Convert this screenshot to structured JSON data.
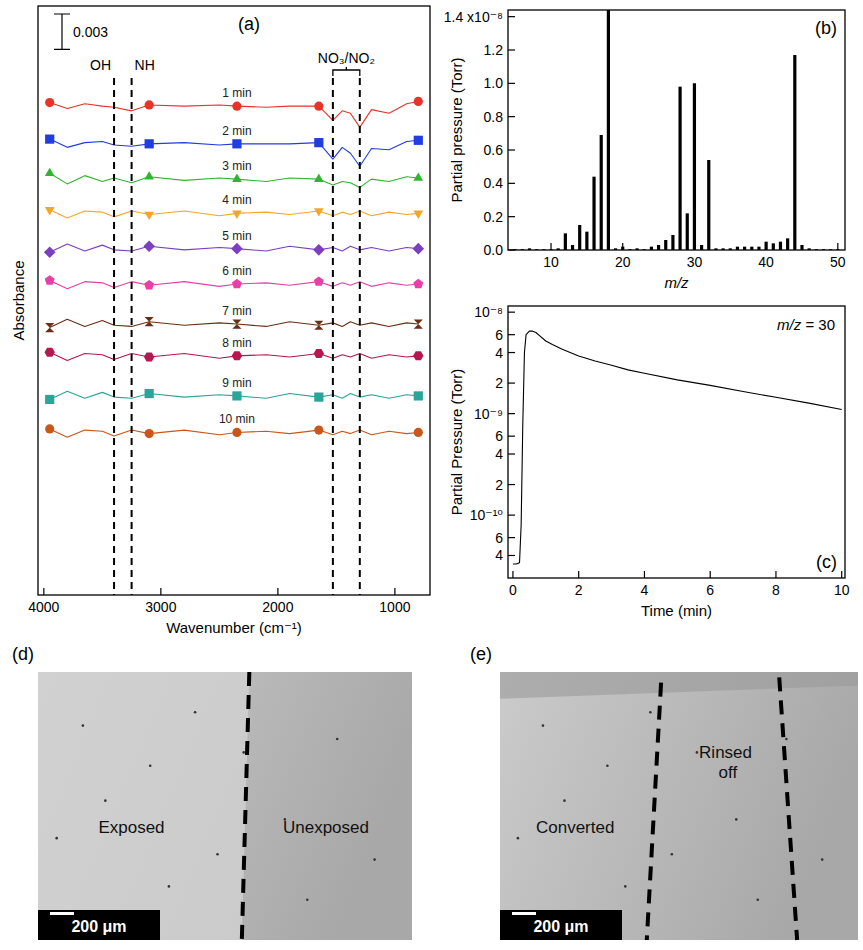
{
  "chart_data": [
    {
      "type": "line",
      "panel": "(a)",
      "x_label": "Wavenumber (cm⁻¹)",
      "y_label": "Absorbance",
      "xlim": [
        4050,
        700
      ],
      "xticks": [
        4000,
        3000,
        2000,
        1000
      ],
      "ylim": [
        0,
        0.05
      ],
      "tick_labels": "x",
      "scale_bar": 0.003,
      "annotations": [
        {
          "text": "OH",
          "x": 3400
        },
        {
          "text": "NH",
          "x": 3250
        },
        {
          "text": "NO₃/NO₂",
          "x": [
            1530,
            1300
          ]
        }
      ],
      "x": [
        3950,
        3800,
        3650,
        3500,
        3400,
        3250,
        3100,
        2800,
        2500,
        2350,
        2100,
        1900,
        1650,
        1530,
        1450,
        1380,
        1300,
        1200,
        1050,
        900,
        800
      ],
      "series": [
        {
          "name": "1 min",
          "color": "#e8332a",
          "marker": "circle",
          "values": [
            0.0418,
            0.0413,
            0.0417,
            0.0415,
            0.0414,
            0.0411,
            0.0416,
            0.0415,
            0.0416,
            0.0415,
            0.0414,
            0.0415,
            0.0415,
            0.0403,
            0.0411,
            0.0409,
            0.0397,
            0.0412,
            0.0409,
            0.0417,
            0.0419
          ]
        },
        {
          "name": "2 min",
          "color": "#1f3de0",
          "marker": "square",
          "values": [
            0.0387,
            0.038,
            0.0384,
            0.0385,
            0.0382,
            0.0381,
            0.0383,
            0.0384,
            0.0382,
            0.0383,
            0.0383,
            0.0383,
            0.0384,
            0.037,
            0.038,
            0.0375,
            0.0364,
            0.0379,
            0.0378,
            0.0385,
            0.0386
          ]
        },
        {
          "name": "3 min",
          "color": "#2fb52f",
          "marker": "triangle",
          "values": [
            0.0358,
            0.0349,
            0.0356,
            0.0351,
            0.0354,
            0.035,
            0.0355,
            0.0352,
            0.0354,
            0.0353,
            0.0351,
            0.0354,
            0.0353,
            0.0348,
            0.0351,
            0.035,
            0.0346,
            0.0353,
            0.0351,
            0.0355,
            0.0354
          ]
        },
        {
          "name": "4 min",
          "color": "#f4a62a",
          "marker": "triangle-down",
          "values": [
            0.0327,
            0.032,
            0.0326,
            0.0325,
            0.0321,
            0.0326,
            0.0323,
            0.0326,
            0.0322,
            0.0324,
            0.0325,
            0.0323,
            0.0326,
            0.0322,
            0.0325,
            0.0323,
            0.0326,
            0.0322,
            0.0325,
            0.0323,
            0.0324
          ]
        },
        {
          "name": "5 min",
          "color": "#7b3fc0",
          "marker": "diamond",
          "values": [
            0.0291,
            0.0298,
            0.0292,
            0.0297,
            0.0293,
            0.0292,
            0.0296,
            0.0293,
            0.0295,
            0.0294,
            0.0292,
            0.0296,
            0.0293,
            0.0295,
            0.0292,
            0.0296,
            0.0293,
            0.0295,
            0.0292,
            0.0295,
            0.0294
          ]
        },
        {
          "name": "6 min",
          "color": "#e83fa8",
          "marker": "pentagon",
          "values": [
            0.0267,
            0.026,
            0.0266,
            0.0265,
            0.0261,
            0.0266,
            0.0263,
            0.0266,
            0.0262,
            0.0264,
            0.0265,
            0.0263,
            0.0266,
            0.0262,
            0.0265,
            0.0263,
            0.0266,
            0.0262,
            0.0265,
            0.0263,
            0.0264
          ]
        },
        {
          "name": "7 min",
          "color": "#6b2e14",
          "marker": "hourglass",
          "values": [
            0.0227,
            0.0234,
            0.0228,
            0.0233,
            0.0229,
            0.0228,
            0.0232,
            0.0229,
            0.0231,
            0.023,
            0.0228,
            0.0232,
            0.0229,
            0.0231,
            0.0228,
            0.0232,
            0.0229,
            0.0231,
            0.0228,
            0.0231,
            0.023
          ]
        },
        {
          "name": "8 min",
          "color": "#b5174e",
          "marker": "hexagon",
          "values": [
            0.0206,
            0.0199,
            0.0205,
            0.0204,
            0.02,
            0.0205,
            0.0202,
            0.0205,
            0.0201,
            0.0203,
            0.0204,
            0.0202,
            0.0205,
            0.0201,
            0.0204,
            0.0202,
            0.0205,
            0.0201,
            0.0204,
            0.0202,
            0.0203
          ]
        },
        {
          "name": "9 min",
          "color": "#2aa59a",
          "marker": "square",
          "values": [
            0.0166,
            0.0173,
            0.0167,
            0.0172,
            0.0168,
            0.0167,
            0.0171,
            0.0168,
            0.017,
            0.0169,
            0.0167,
            0.0171,
            0.0168,
            0.017,
            0.0167,
            0.0171,
            0.0168,
            0.017,
            0.0167,
            0.017,
            0.0169
          ]
        },
        {
          "name": "10 min",
          "color": "#c9561a",
          "marker": "circle",
          "values": [
            0.0141,
            0.0134,
            0.014,
            0.0139,
            0.0135,
            0.014,
            0.0137,
            0.014,
            0.0136,
            0.0138,
            0.0139,
            0.0137,
            0.014,
            0.0136,
            0.0139,
            0.0137,
            0.014,
            0.0136,
            0.0139,
            0.0137,
            0.0138
          ]
        }
      ]
    },
    {
      "type": "bar",
      "panel": "(b)",
      "x_label": "m/z",
      "y_label": "Partial pressure (Torr)",
      "color": "#000000",
      "xlim": [
        4,
        51
      ],
      "xticks": [
        10,
        20,
        30,
        40,
        50
      ],
      "ylim": [
        0,
        1.44e-08
      ],
      "yticks": [
        {
          "value": 0,
          "label": "0.0"
        },
        {
          "value": 2e-09,
          "label": "0.2"
        },
        {
          "value": 4e-09,
          "label": "0.4"
        },
        {
          "value": 6e-09,
          "label": "0.6"
        },
        {
          "value": 8e-09,
          "label": "0.8"
        },
        {
          "value": 1e-08,
          "label": "1.0"
        },
        {
          "value": 1.2e-08,
          "label": "1.2"
        },
        {
          "value": 1.4e-08,
          "label": "1.4 x10⁻⁸"
        }
      ],
      "x": [
        5,
        6,
        7,
        8,
        9,
        10,
        11,
        12,
        13,
        14,
        15,
        16,
        17,
        18,
        19,
        20,
        21,
        22,
        23,
        24,
        25,
        26,
        27,
        28,
        29,
        30,
        31,
        32,
        33,
        34,
        35,
        36,
        37,
        38,
        39,
        40,
        41,
        42,
        43,
        44,
        45,
        46,
        47,
        48,
        49,
        50
      ],
      "values": [
        5e-11,
        5e-11,
        1e-10,
        5e-11,
        5e-11,
        5e-11,
        1e-10,
        1e-09,
        3e-10,
        1.5e-09,
        1.1e-09,
        4.4e-09,
        6.9e-09,
        1.5e-08,
        1e-10,
        2e-10,
        5e-11,
        1e-10,
        5e-11,
        2e-10,
        3e-10,
        6e-10,
        9e-10,
        9.8e-09,
        2.2e-09,
        1e-08,
        3e-10,
        5.4e-09,
        1e-10,
        1e-10,
        1e-10,
        2e-10,
        2e-10,
        2e-10,
        2e-10,
        5e-10,
        4e-10,
        5e-10,
        7e-10,
        1.17e-08,
        3e-10,
        1e-10,
        5e-11,
        5e-11,
        5e-11,
        5e-11
      ]
    },
    {
      "type": "line",
      "panel": "(c)",
      "x_label": "Time (min)",
      "y_label": "Partial Pressure (Torr)",
      "color": "#000000",
      "annotation": "m/z = 30",
      "log": "y",
      "xlim": [
        -0.15,
        10.1
      ],
      "xticks": [
        0,
        2,
        4,
        6,
        8,
        10
      ],
      "ylim": [
        2.4e-11,
        1.15e-08
      ],
      "yticks": [
        {
          "value": 1e-08,
          "label": "10⁻⁸"
        },
        {
          "value": 6e-09,
          "label": "6"
        },
        {
          "value": 4e-09,
          "label": "4"
        },
        {
          "value": 2e-09,
          "label": "2"
        },
        {
          "value": 1e-09,
          "label": "10⁻⁹"
        },
        {
          "value": 6e-10,
          "label": "6"
        },
        {
          "value": 4e-10,
          "label": "4"
        },
        {
          "value": 2e-10,
          "label": "2"
        },
        {
          "value": 1e-10,
          "label": "10⁻¹⁰"
        },
        {
          "value": 6e-11,
          "label": "6"
        },
        {
          "value": 4e-11,
          "label": "4"
        }
      ],
      "x": [
        0,
        0.1,
        0.2,
        0.25,
        0.3,
        0.35,
        0.4,
        0.5,
        0.6,
        0.7,
        0.8,
        1,
        1.2,
        1.5,
        2,
        2.5,
        3,
        3.5,
        4,
        5,
        6,
        7,
        8,
        9,
        10
      ],
      "values": [
        3.3e-11,
        3.3e-11,
        3.4e-11,
        8e-11,
        8e-10,
        4e-09,
        6e-09,
        6.5e-09,
        6.5e-09,
        6.3e-09,
        5.9e-09,
        5.2e-09,
        4.8e-09,
        4.3e-09,
        3.7e-09,
        3.3e-09,
        3e-09,
        2.7e-09,
        2.5e-09,
        2.15e-09,
        1.9e-09,
        1.65e-09,
        1.45e-09,
        1.27e-09,
        1.1e-09
      ]
    }
  ],
  "images": [
    {
      "panel": "(d)",
      "regions": [
        "Exposed",
        "Unexposed"
      ],
      "scale_bar": "200 μm"
    },
    {
      "panel": "(e)",
      "regions": [
        "Converted",
        "Rinsed off"
      ],
      "scale_bar": "200 μm"
    }
  ]
}
